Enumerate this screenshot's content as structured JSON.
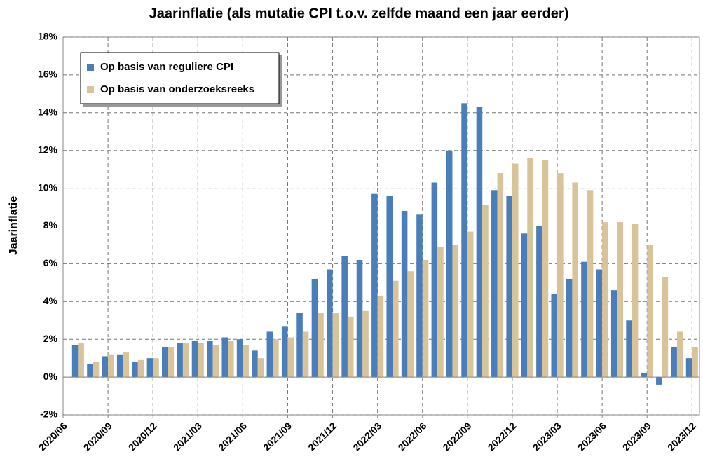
{
  "chart_data": {
    "type": "bar",
    "title": "Jaarinflatie (als mutatie CPI t.o.v. zelfde maand een jaar eerder)",
    "y_label": "Jaarinflatie",
    "categories": [
      "2020/06",
      null,
      null,
      "2020/09",
      null,
      null,
      "2020/12",
      null,
      null,
      "2021/03",
      null,
      null,
      "2021/06",
      null,
      null,
      "2021/09",
      null,
      null,
      "2021/12",
      null,
      null,
      "2022/03",
      null,
      null,
      "2022/06",
      null,
      null,
      "2022/09",
      null,
      null,
      "2022/12",
      null,
      null,
      "2023/03",
      null,
      null,
      "2023/06",
      null,
      null,
      "2023/09",
      null,
      null,
      "2023/12"
    ],
    "series": [
      {
        "name": "Op basis van reguliere CPI",
        "color": "#4a7ebb",
        "values": [
          null,
          1.7,
          0.7,
          1.1,
          1.2,
          0.8,
          1.0,
          1.6,
          1.8,
          1.9,
          1.9,
          2.1,
          2.0,
          1.4,
          2.4,
          2.7,
          3.4,
          5.2,
          5.7,
          6.4,
          6.2,
          9.7,
          9.6,
          8.8,
          8.6,
          10.3,
          12.0,
          14.5,
          14.3,
          9.9,
          9.6,
          7.6,
          8.0,
          4.4,
          5.2,
          6.1,
          5.7,
          4.6,
          3.0,
          0.2,
          -0.4,
          1.6,
          1.0
        ]
      },
      {
        "name": "Op basis van onderzoeksreeks",
        "color": "#d9c49a",
        "values": [
          null,
          1.8,
          0.8,
          1.2,
          1.3,
          0.9,
          1.0,
          1.6,
          1.8,
          1.8,
          1.7,
          1.9,
          1.7,
          1.0,
          2.0,
          2.1,
          2.4,
          3.4,
          3.4,
          3.2,
          3.5,
          4.3,
          5.1,
          5.6,
          6.2,
          6.9,
          7.0,
          7.7,
          9.1,
          10.8,
          11.3,
          11.6,
          11.5,
          10.8,
          10.3,
          9.9,
          8.2,
          8.2,
          8.1,
          7.0,
          5.3,
          2.4,
          1.6
        ]
      }
    ],
    "ylim": [
      -2,
      18
    ],
    "yticks": [
      {
        "value": -2,
        "label": "-2%"
      },
      {
        "value": 0,
        "label": "0%"
      },
      {
        "value": 2,
        "label": "2%"
      },
      {
        "value": 4,
        "label": "4%"
      },
      {
        "value": 6,
        "label": "6%"
      },
      {
        "value": 8,
        "label": "8%"
      },
      {
        "value": 10,
        "label": "10%"
      },
      {
        "value": 12,
        "label": "12%"
      },
      {
        "value": 14,
        "label": "14%"
      },
      {
        "value": 16,
        "label": "16%"
      },
      {
        "value": 18,
        "label": "18%"
      }
    ],
    "grid": true
  }
}
